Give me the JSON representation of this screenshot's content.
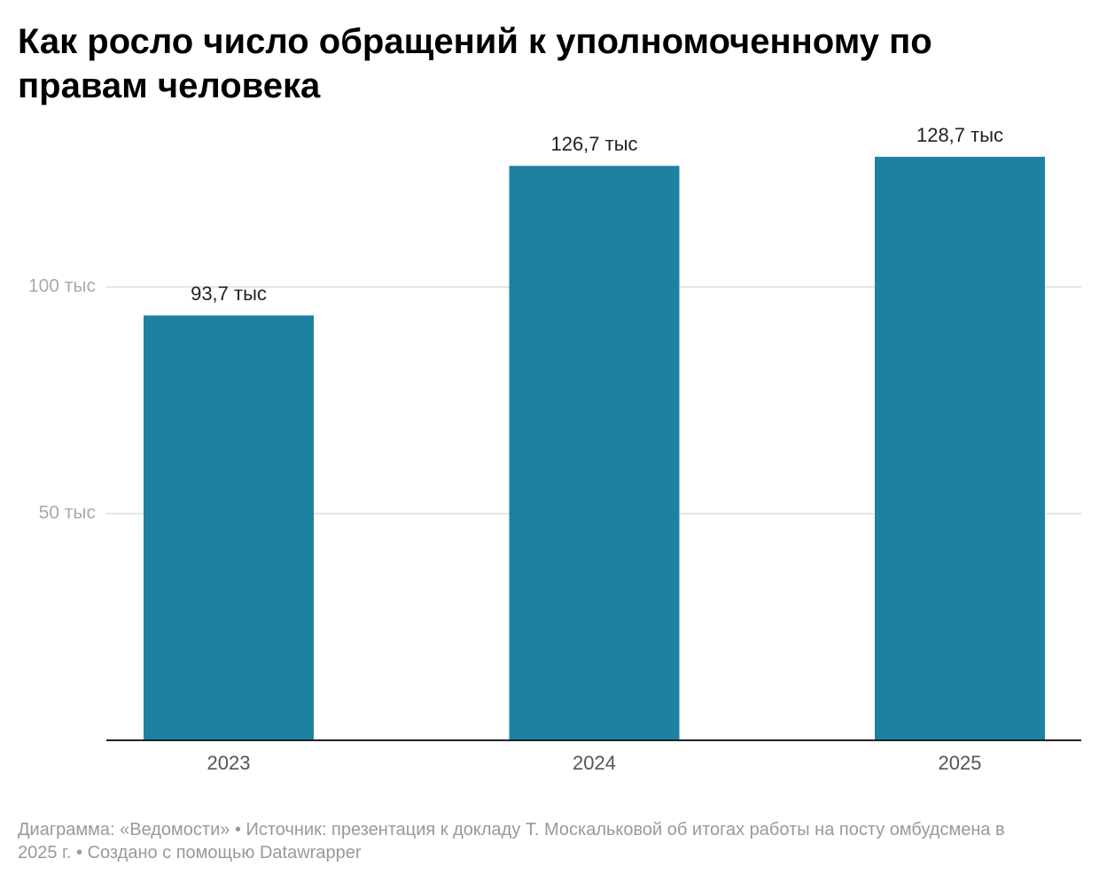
{
  "chart_data": {
    "type": "bar",
    "title": "Как росло число обращений к уполномоченному по правам человека",
    "categories": [
      "2023",
      "2024",
      "2025"
    ],
    "values": [
      93.7,
      126.7,
      128.7
    ],
    "value_labels": [
      "93,7 тыс",
      "126,7 тыс",
      "128,7 тыс"
    ],
    "color": "#1d81a2",
    "ylim": [
      0,
      130
    ],
    "yticks": [
      {
        "value": 50,
        "label": "50 тыс"
      },
      {
        "value": 100,
        "label": "100 тыс"
      }
    ],
    "grid": true,
    "footer": "Диаграмма: «Ведомости» • Источник: презентация к докладу Т. Москальковой об итогах работы на посту омбудсмена в 2025 г. • Создано с помощью Datawrapper"
  }
}
